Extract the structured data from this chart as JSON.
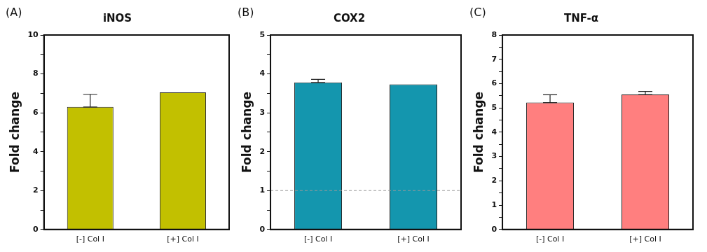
{
  "chart_data": [
    {
      "type": "bar",
      "title": "iNOS",
      "ylabel": "Fold change",
      "annotations": [
        "(A)"
      ],
      "categories": [
        "[-] Col I",
        "[+] Col I"
      ],
      "values": [
        6.3,
        7.05
      ],
      "color": "#c2c000",
      "errors": [
        [
          6.3,
          6.95
        ],
        null
      ],
      "ylim": [
        0,
        10
      ],
      "yticks": [
        0,
        {
          "value": 1,
          "label": null
        },
        2,
        {
          "value": 3,
          "label": null
        },
        4,
        {
          "value": 5,
          "label": null
        },
        6,
        {
          "value": 7,
          "label": null
        },
        8,
        {
          "value": 9,
          "label": null
        },
        10
      ],
      "grid": false,
      "legend": false
    },
    {
      "type": "bar",
      "title": "COX2",
      "ylabel": "Fold change",
      "annotations": [
        "(B)"
      ],
      "categories": [
        "[-] Col I",
        "[+] Col I"
      ],
      "values": [
        3.78,
        3.73
      ],
      "color": "#1496ae",
      "errors": [
        [
          3.78,
          3.86
        ],
        null
      ],
      "ylim": [
        0,
        5
      ],
      "yticks": [
        0,
        {
          "value": 0.5,
          "label": null
        },
        1,
        {
          "value": 1.5,
          "label": null
        },
        2,
        {
          "value": 2.5,
          "label": null
        },
        3,
        {
          "value": 3.5,
          "label": null
        },
        4,
        {
          "value": 4.5,
          "label": null
        },
        5
      ],
      "ref_lines": [
        {
          "axis": "y",
          "value": 1,
          "color": "#999999",
          "line_style": "dashed"
        }
      ],
      "grid": false,
      "legend": false
    },
    {
      "type": "bar",
      "title": "TNF-α",
      "ylabel": "Fold change",
      "annotations": [
        "(C)"
      ],
      "categories": [
        "[-] Col I",
        "[+] Col I"
      ],
      "values": [
        5.22,
        5.55
      ],
      "color": "#ff7f7f",
      "errors": [
        [
          5.22,
          5.54
        ],
        [
          5.55,
          5.68
        ]
      ],
      "ylim": [
        0,
        8
      ],
      "yticks": [
        0,
        {
          "value": 0.5,
          "label": null
        },
        1,
        {
          "value": 1.5,
          "label": null
        },
        2,
        {
          "value": 2.5,
          "label": null
        },
        3,
        {
          "value": 3.5,
          "label": null
        },
        4,
        {
          "value": 4.5,
          "label": null
        },
        5,
        {
          "value": 5.5,
          "label": null
        },
        6,
        {
          "value": 6.5,
          "label": null
        },
        7,
        {
          "value": 7.5,
          "label": null
        },
        8
      ],
      "grid": false,
      "legend": false
    }
  ]
}
